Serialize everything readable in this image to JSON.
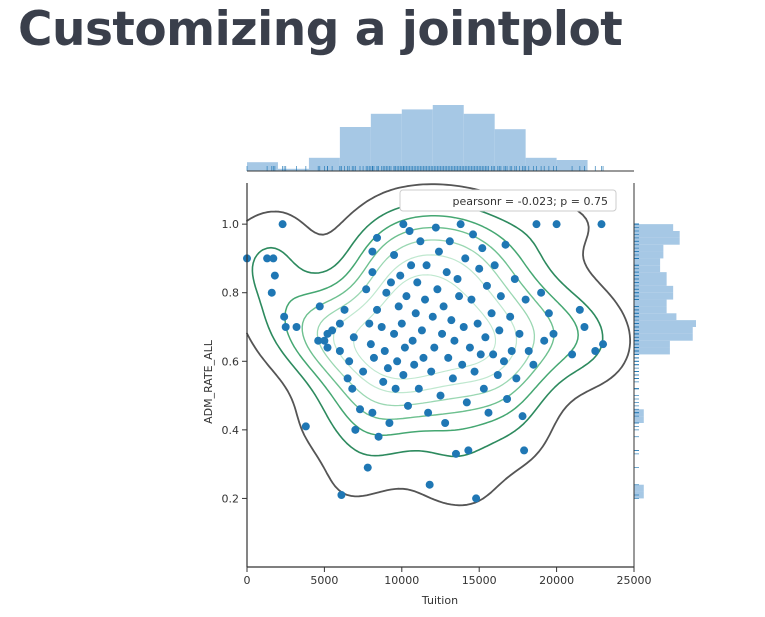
{
  "slide": {
    "title": "Customizing a jointplot"
  },
  "chart_data": {
    "type": "scatter",
    "subtype": "jointplot with kde contours, marginal histograms and rug",
    "xlabel": "Tuition",
    "ylabel": "ADM_RATE_ALL",
    "xlim": [
      0,
      25000
    ],
    "ylim": [
      0,
      1.12
    ],
    "xticks": [
      0,
      5000,
      10000,
      15000,
      20000,
      25000
    ],
    "xtick_labels": [
      "0",
      "5000",
      "10000",
      "15000",
      "20000",
      "25000"
    ],
    "yticks": [
      0.2,
      0.4,
      0.6,
      0.8,
      1.0
    ],
    "ytick_labels": [
      "0.2",
      "0.4",
      "0.6",
      "0.8",
      "1.0"
    ],
    "annotation": "pearsonr = -0.023; p = 0.75",
    "legend_position": "top-right",
    "grid": false,
    "colors": {
      "points": "#1f77b4",
      "hist": "#9cc2e2",
      "outer_contour": "#555555",
      "inner_contours": [
        "#2d8a5e",
        "#45a772",
        "#6dc08f",
        "#9ad7b2",
        "#bfe8cf"
      ]
    },
    "x_hist": {
      "bin_edges": [
        0,
        2000,
        4000,
        6000,
        8000,
        10000,
        12000,
        14000,
        16000,
        18000,
        20000,
        22000,
        24000
      ],
      "density": [
        0.2,
        0.05,
        0.3,
        1.0,
        1.3,
        1.4,
        1.5,
        1.3,
        0.95,
        0.3,
        0.25,
        0
      ]
    },
    "y_hist": {
      "bin_edges": [
        0.2,
        0.22,
        0.24,
        0.26,
        0.28,
        0.3,
        0.32,
        0.34,
        0.36,
        0.38,
        0.4,
        0.42,
        0.44,
        0.46,
        0.48,
        0.5,
        0.52,
        0.54,
        0.56,
        0.58,
        0.6,
        0.62,
        0.64,
        0.66,
        0.68,
        0.7,
        0.72,
        0.74,
        0.76,
        0.78,
        0.8,
        0.82,
        0.84,
        0.86,
        0.88,
        0.9,
        0.92,
        0.94,
        0.96,
        0.98,
        1.0
      ],
      "density": [
        0.3,
        0.3,
        0,
        0,
        0,
        0,
        0,
        0,
        0,
        0,
        0,
        0.3,
        0.3,
        0,
        0,
        0,
        0,
        0,
        0,
        0,
        0,
        1.1,
        1.1,
        1.8,
        1.8,
        1.9,
        1.3,
        1.0,
        1.0,
        1.2,
        1.2,
        1.0,
        1.0,
        0.8,
        0.8,
        0.9,
        0.9,
        1.4,
        1.4,
        1.2
      ]
    },
    "points": [
      [
        0,
        0.9
      ],
      [
        1300,
        0.9
      ],
      [
        1700,
        0.9
      ],
      [
        1600,
        0.8
      ],
      [
        1800,
        0.85
      ],
      [
        2300,
        1.0
      ],
      [
        2400,
        0.73
      ],
      [
        2500,
        0.7
      ],
      [
        3200,
        0.7
      ],
      [
        3800,
        0.41
      ],
      [
        4700,
        0.76
      ],
      [
        4600,
        0.66
      ],
      [
        5000,
        0.66
      ],
      [
        5200,
        0.68
      ],
      [
        5200,
        0.64
      ],
      [
        5500,
        0.69
      ],
      [
        6000,
        0.63
      ],
      [
        6000,
        0.71
      ],
      [
        6100,
        0.21
      ],
      [
        6300,
        0.75
      ],
      [
        6500,
        0.55
      ],
      [
        6600,
        0.6
      ],
      [
        6800,
        0.52
      ],
      [
        6900,
        0.67
      ],
      [
        7000,
        0.4
      ],
      [
        7300,
        0.46
      ],
      [
        7500,
        0.57
      ],
      [
        7700,
        0.81
      ],
      [
        7800,
        0.29
      ],
      [
        7900,
        0.71
      ],
      [
        8000,
        0.65
      ],
      [
        8100,
        0.92
      ],
      [
        8100,
        0.86
      ],
      [
        8100,
        0.45
      ],
      [
        8200,
        0.61
      ],
      [
        8400,
        0.96
      ],
      [
        8400,
        0.75
      ],
      [
        8500,
        0.38
      ],
      [
        8700,
        0.7
      ],
      [
        8800,
        0.54
      ],
      [
        8900,
        0.63
      ],
      [
        9000,
        0.8
      ],
      [
        9100,
        0.58
      ],
      [
        9200,
        0.42
      ],
      [
        9300,
        0.83
      ],
      [
        9500,
        0.91
      ],
      [
        9500,
        0.68
      ],
      [
        9600,
        0.52
      ],
      [
        9700,
        0.6
      ],
      [
        9800,
        0.76
      ],
      [
        9900,
        0.85
      ],
      [
        10000,
        0.71
      ],
      [
        10100,
        0.56
      ],
      [
        10100,
        1.0
      ],
      [
        10200,
        0.64
      ],
      [
        10300,
        0.79
      ],
      [
        10400,
        0.47
      ],
      [
        10500,
        0.98
      ],
      [
        10600,
        0.88
      ],
      [
        10700,
        0.66
      ],
      [
        10800,
        0.59
      ],
      [
        10900,
        0.74
      ],
      [
        11000,
        0.83
      ],
      [
        11100,
        0.52
      ],
      [
        11200,
        0.95
      ],
      [
        11300,
        0.69
      ],
      [
        11400,
        0.61
      ],
      [
        11500,
        0.78
      ],
      [
        11600,
        0.88
      ],
      [
        11700,
        0.45
      ],
      [
        11800,
        0.24
      ],
      [
        11900,
        0.57
      ],
      [
        12000,
        0.73
      ],
      [
        12100,
        0.64
      ],
      [
        12200,
        0.99
      ],
      [
        12300,
        0.81
      ],
      [
        12400,
        0.92
      ],
      [
        12500,
        0.5
      ],
      [
        12600,
        0.68
      ],
      [
        12700,
        0.76
      ],
      [
        12800,
        0.42
      ],
      [
        12900,
        0.86
      ],
      [
        13000,
        0.61
      ],
      [
        13100,
        0.95
      ],
      [
        13200,
        0.72
      ],
      [
        13300,
        0.55
      ],
      [
        13400,
        0.66
      ],
      [
        13500,
        0.33
      ],
      [
        13600,
        0.84
      ],
      [
        13700,
        0.79
      ],
      [
        13800,
        1.0
      ],
      [
        13900,
        0.59
      ],
      [
        14000,
        0.7
      ],
      [
        14100,
        0.9
      ],
      [
        14200,
        0.48
      ],
      [
        14300,
        0.34
      ],
      [
        14400,
        0.64
      ],
      [
        14500,
        0.78
      ],
      [
        14600,
        0.97
      ],
      [
        14700,
        0.57
      ],
      [
        14800,
        0.2
      ],
      [
        14900,
        0.71
      ],
      [
        15000,
        0.87
      ],
      [
        15100,
        0.62
      ],
      [
        15200,
        0.93
      ],
      [
        15300,
        0.52
      ],
      [
        15400,
        0.67
      ],
      [
        15500,
        0.82
      ],
      [
        15600,
        0.45
      ],
      [
        15800,
        0.74
      ],
      [
        15900,
        0.62
      ],
      [
        16000,
        0.88
      ],
      [
        16200,
        0.56
      ],
      [
        16300,
        0.69
      ],
      [
        16400,
        0.79
      ],
      [
        16600,
        0.6
      ],
      [
        16700,
        0.94
      ],
      [
        16800,
        0.49
      ],
      [
        17000,
        0.73
      ],
      [
        17100,
        0.63
      ],
      [
        17300,
        0.84
      ],
      [
        17400,
        0.55
      ],
      [
        17600,
        0.68
      ],
      [
        17800,
        0.44
      ],
      [
        17900,
        0.34
      ],
      [
        18000,
        0.78
      ],
      [
        18200,
        0.63
      ],
      [
        18500,
        0.59
      ],
      [
        18700,
        1.0
      ],
      [
        19000,
        0.8
      ],
      [
        19200,
        0.66
      ],
      [
        19500,
        0.74
      ],
      [
        19800,
        0.68
      ],
      [
        20000,
        1.0
      ],
      [
        21000,
        0.62
      ],
      [
        21500,
        0.75
      ],
      [
        21800,
        0.7
      ],
      [
        22500,
        0.63
      ],
      [
        22900,
        1.0
      ],
      [
        23000,
        0.65
      ]
    ]
  }
}
